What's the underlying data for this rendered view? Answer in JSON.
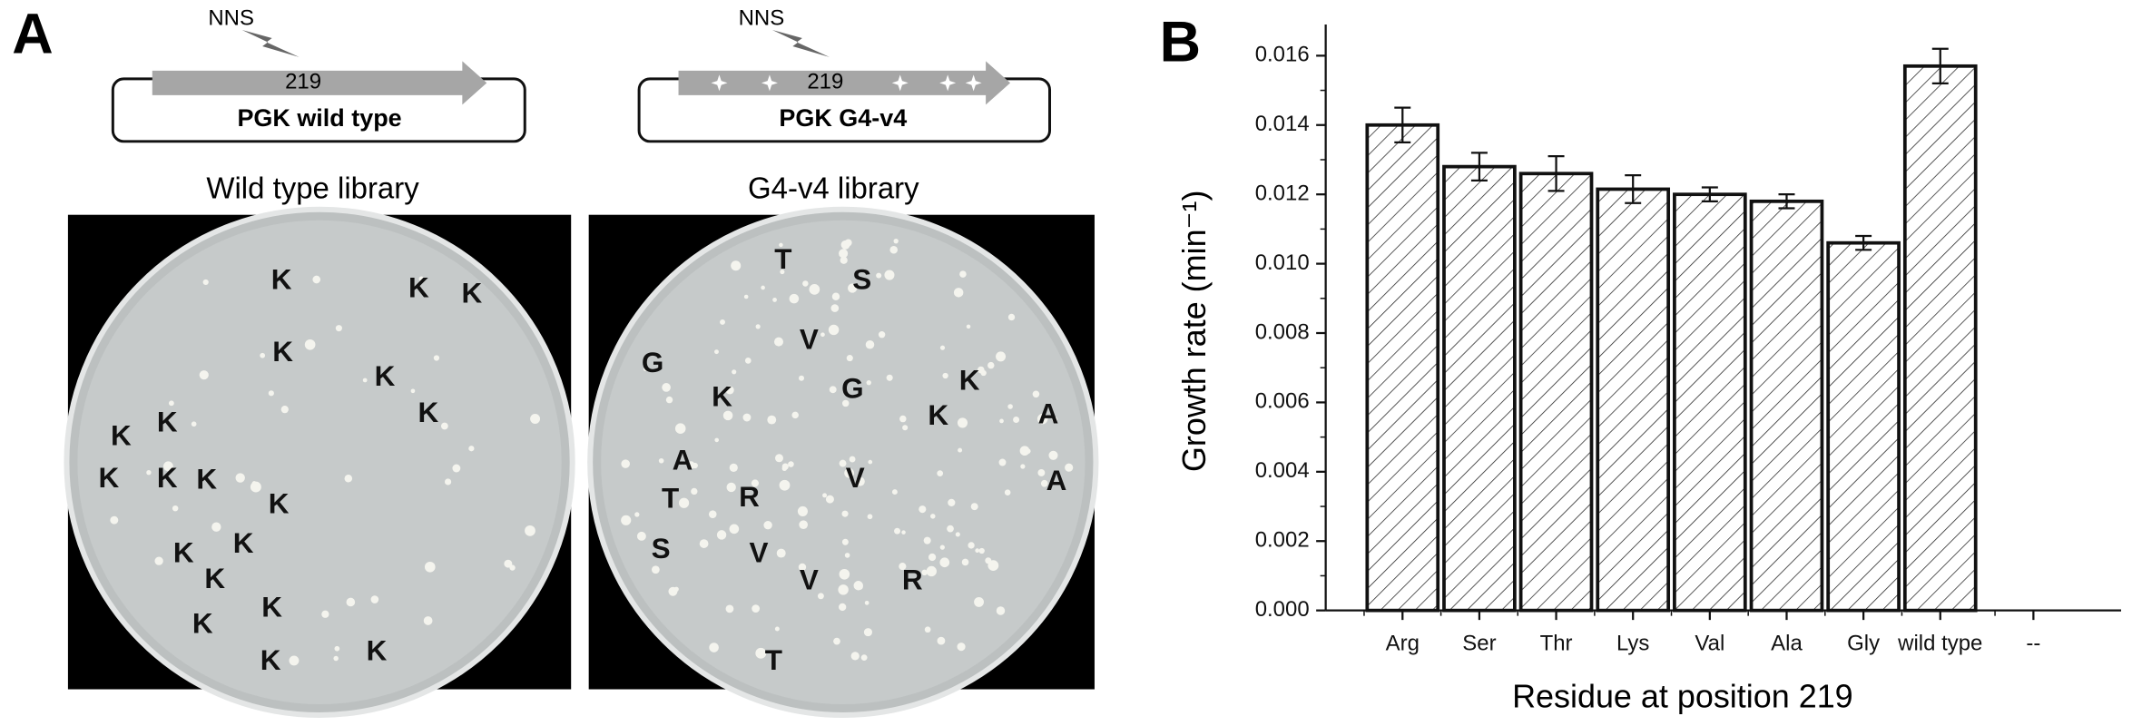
{
  "panel_a": {
    "label": "A",
    "constructs": [
      {
        "mutagen": "NNS",
        "position": "219",
        "name": "PGK wild type"
      },
      {
        "mutagen": "NNS",
        "position": "219",
        "name": "PGK G4-v4"
      }
    ],
    "libraries": [
      {
        "title": "Wild type library",
        "colonies": [
          "K",
          "K",
          "K",
          "K",
          "K",
          "K",
          "K",
          "K",
          "K",
          "K",
          "K",
          "K",
          "K",
          "K",
          "K",
          "K",
          "K",
          "K",
          "K"
        ]
      },
      {
        "title": "G4-v4 library",
        "colonies": [
          "T",
          "S",
          "G",
          "V",
          "K",
          "G",
          "K",
          "K",
          "A",
          "A",
          "V",
          "A",
          "T",
          "R",
          "S",
          "V",
          "V",
          "R",
          "T"
        ]
      }
    ]
  },
  "chart_data": {
    "type": "bar",
    "panel_label": "B",
    "categories": [
      "Arg",
      "Ser",
      "Thr",
      "Lys",
      "Val",
      "Ala",
      "Gly",
      "wild type",
      "--"
    ],
    "values": [
      0.014,
      0.0128,
      0.0126,
      0.01215,
      0.012,
      0.0118,
      0.0106,
      0.0157,
      null
    ],
    "errors": [
      0.0005,
      0.0004,
      0.0005,
      0.0004,
      0.0002,
      0.0002,
      0.0002,
      0.0005,
      null
    ],
    "ylim": [
      0,
      0.0169
    ],
    "yticks": [
      {
        "value": 0,
        "label": "0.000"
      },
      {
        "value": 0.002,
        "label": "0.002"
      },
      {
        "value": 0.004,
        "label": "0.004"
      },
      {
        "value": 0.006,
        "label": "0.006"
      },
      {
        "value": 0.008,
        "label": "0.008"
      },
      {
        "value": 0.01,
        "label": "0.010"
      },
      {
        "value": 0.012,
        "label": "0.012"
      },
      {
        "value": 0.014,
        "label": "0.014"
      },
      {
        "value": 0.016,
        "label": "0.016"
      }
    ],
    "ylabel": "Growth rate (min⁻¹)",
    "xlabel": "Residue at position 219"
  }
}
